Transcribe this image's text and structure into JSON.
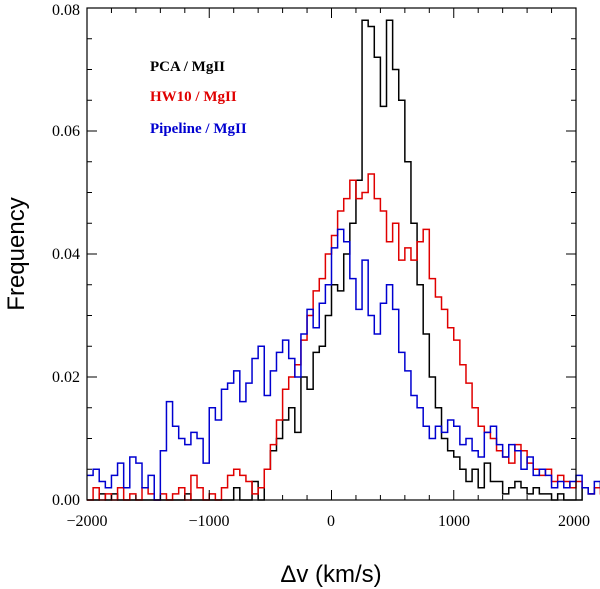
{
  "chart_data": {
    "type": "histogram",
    "xlabel": "Δv (km/s)",
    "ylabel": "Frequency",
    "xlim": [
      -2000,
      2000
    ],
    "ylim": [
      0,
      0.08
    ],
    "x_ticks": [
      "−2000",
      "−1000",
      "0",
      "1000",
      "2000"
    ],
    "y_ticks": [
      "0.00",
      "0.02",
      "0.04",
      "0.06",
      "0.08"
    ],
    "legend_position": "top-left",
    "grid": false,
    "bin_start": -2000,
    "bin_width": 50,
    "series": [
      {
        "name": "PCA / MgII",
        "color": "#000000",
        "values": [
          0.0,
          0.0,
          0.001,
          0.0,
          0.001,
          0.0,
          0.0,
          0.0,
          0.0,
          0.0,
          0.0,
          0.0,
          0.0,
          0.0,
          0.0,
          0.0,
          0.001,
          0.0,
          0.0,
          0.0,
          0.0,
          0.0,
          0.0,
          0.0,
          0.002,
          0.0,
          0.0,
          0.003,
          0.0,
          0.005,
          0.008,
          0.01,
          0.013,
          0.015,
          0.011,
          0.02,
          0.018,
          0.024,
          0.025,
          0.03,
          0.035,
          0.034,
          0.04,
          0.045,
          0.052,
          0.078,
          0.077,
          0.072,
          0.064,
          0.078,
          0.07,
          0.065,
          0.055,
          0.045,
          0.035,
          0.027,
          0.02,
          0.015,
          0.01,
          0.008,
          0.007,
          0.005,
          0.003,
          0.005,
          0.002,
          0.006,
          0.003,
          0.003,
          0.001,
          0.002,
          0.003,
          0.002,
          0.001,
          0.002,
          0.001,
          0.001,
          0.0,
          0.001,
          0.0,
          0.0,
          0.0,
          0.002,
          0.001,
          0.002,
          0.003,
          0.002,
          0.001,
          0.006,
          0.005,
          0.006,
          0.002,
          0.0,
          0.001,
          0.0,
          0.0,
          0.0,
          0.0,
          0.0,
          0.0,
          0.0
        ]
      },
      {
        "name": "HW10 / MgII",
        "color": "#e00000",
        "values": [
          0.0,
          0.002,
          0.0,
          0.001,
          0.0,
          0.002,
          0.0,
          0.001,
          0.0,
          0.002,
          0.001,
          0.0,
          0.001,
          0.0,
          0.001,
          0.002,
          0.0,
          0.004,
          0.002,
          0.0,
          0.001,
          0.0,
          0.002,
          0.004,
          0.005,
          0.004,
          0.003,
          0.001,
          0.002,
          0.005,
          0.009,
          0.013,
          0.018,
          0.02,
          0.022,
          0.026,
          0.03,
          0.034,
          0.036,
          0.04,
          0.043,
          0.047,
          0.049,
          0.052,
          0.049,
          0.05,
          0.053,
          0.049,
          0.047,
          0.042,
          0.045,
          0.039,
          0.041,
          0.039,
          0.042,
          0.044,
          0.036,
          0.033,
          0.031,
          0.028,
          0.026,
          0.022,
          0.019,
          0.015,
          0.012,
          0.011,
          0.01,
          0.008,
          0.007,
          0.006,
          0.009,
          0.008,
          0.006,
          0.005,
          0.004,
          0.005,
          0.003,
          0.004,
          0.003,
          0.002,
          0.003,
          0.002,
          0.001,
          0.002,
          0.001,
          0.003,
          0.001,
          0.002,
          0.001,
          0.001,
          0.002,
          0.001,
          0.0,
          0.001,
          0.0,
          0.001,
          0.002,
          0.0,
          0.001,
          0.0,
          0.0,
          0.0,
          0.0,
          0.0,
          0.0
        ]
      },
      {
        "name": "Pipeline / MgII",
        "color": "#0000d0",
        "values": [
          0.004,
          0.005,
          0.003,
          0.002,
          0.004,
          0.006,
          0.002,
          0.007,
          0.006,
          0.002,
          0.004,
          0.0,
          0.008,
          0.016,
          0.012,
          0.01,
          0.009,
          0.011,
          0.01,
          0.006,
          0.015,
          0.013,
          0.018,
          0.019,
          0.021,
          0.016,
          0.019,
          0.023,
          0.025,
          0.017,
          0.021,
          0.024,
          0.026,
          0.023,
          0.02,
          0.027,
          0.031,
          0.028,
          0.032,
          0.035,
          0.041,
          0.044,
          0.042,
          0.036,
          0.031,
          0.039,
          0.03,
          0.027,
          0.032,
          0.035,
          0.031,
          0.024,
          0.021,
          0.017,
          0.015,
          0.012,
          0.01,
          0.012,
          0.011,
          0.013,
          0.012,
          0.009,
          0.01,
          0.008,
          0.007,
          0.011,
          0.012,
          0.009,
          0.007,
          0.009,
          0.008,
          0.005,
          0.007,
          0.004,
          0.005,
          0.004,
          0.002,
          0.003,
          0.002,
          0.003,
          0.004,
          0.002,
          0.001,
          0.003,
          0.002,
          0.001,
          0.002,
          0.002,
          0.003,
          0.001,
          0.002,
          0.001,
          0.003,
          0.002,
          0.0,
          0.002,
          0.001,
          0.0,
          0.001,
          0.002,
          0.001,
          0.0,
          0.0,
          0.0,
          0.0
        ]
      }
    ]
  }
}
